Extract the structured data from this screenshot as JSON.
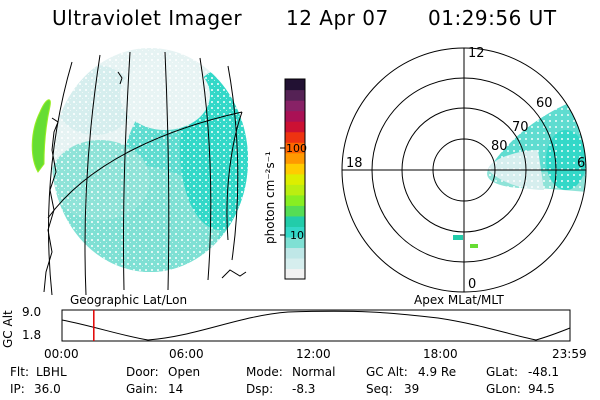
{
  "header": {
    "title": "Ultraviolet Imager",
    "date": "12 Apr 07",
    "time": "01:29:56 UT"
  },
  "panels": {
    "left_label": "Geographic Lat/Lon",
    "right_label": "Apex MLat/MLT"
  },
  "colorbar": {
    "unit_label": "photon cm⁻²s⁻¹",
    "ticks": [
      "100",
      "10"
    ],
    "colors": [
      "#f2f2f2",
      "#d6eeee",
      "#bfe7e7",
      "#7fe0d4",
      "#33d8c8",
      "#22ccaa",
      "#55dd55",
      "#88ee22",
      "#bbee11",
      "#ddee00",
      "#ffcc00",
      "#ff9900",
      "#ff6600",
      "#ee3311",
      "#cc1133",
      "#aa1155",
      "#882266",
      "#552255",
      "#221133"
    ]
  },
  "polar_plot": {
    "mlt_labels": [
      "12",
      "18",
      "6",
      "0"
    ],
    "mlat_labels": [
      "60",
      "70",
      "80"
    ]
  },
  "altitude_plot": {
    "y_label": "GC Alt",
    "y_ticks": [
      "9.0",
      "1.8"
    ],
    "x_ticks": [
      "00:00",
      "06:00",
      "12:00",
      "18:00",
      "23:59"
    ],
    "current_time_fraction": 0.0625
  },
  "info": {
    "filter": {
      "label": "Flt:",
      "value": "LBHL"
    },
    "door": {
      "label": "Door:",
      "value": "Open"
    },
    "mode": {
      "label": "Mode:",
      "value": "Normal"
    },
    "gc_alt": {
      "label": "GC Alt:",
      "value": "4.9 Re"
    },
    "glat": {
      "label": "GLat:",
      "value": "-48.1"
    },
    "ip": {
      "label": "IP:",
      "value": "36.0"
    },
    "gain": {
      "label": "Gain:",
      "value": "14"
    },
    "dsp": {
      "label": "Dsp:",
      "value": "-8.3"
    },
    "seq": {
      "label": "Seq:",
      "value": "39"
    },
    "glon": {
      "label": "GLon:",
      "value": "94.5"
    }
  }
}
